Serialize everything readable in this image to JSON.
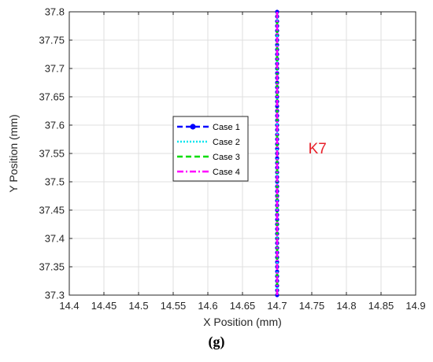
{
  "chart_data": {
    "type": "line",
    "xlabel": "X Position (mm)",
    "ylabel": "Y Position (mm)",
    "xlim": [
      14.4,
      14.9
    ],
    "ylim": [
      37.3,
      37.8
    ],
    "xticks": [
      "14.4",
      "14.45",
      "14.5",
      "14.55",
      "14.6",
      "14.65",
      "14.7",
      "14.75",
      "14.8",
      "14.85",
      "14.9"
    ],
    "yticks": [
      "37.3",
      "37.35",
      "37.4",
      "37.45",
      "37.5",
      "37.55",
      "37.6",
      "37.65",
      "37.7",
      "37.75",
      "37.8"
    ],
    "grid": true,
    "legend_position": "center-left",
    "series": [
      {
        "name": "Case 1",
        "color": "#0000ff",
        "style": "dashed-with-circle-markers",
        "x": [
          14.7,
          14.7
        ],
        "y": [
          37.3,
          37.8
        ]
      },
      {
        "name": "Case 2",
        "color": "#00e5ee",
        "style": "dotted",
        "x": [
          14.7,
          14.7
        ],
        "y": [
          37.3,
          37.8
        ]
      },
      {
        "name": "Case 3",
        "color": "#00dd00",
        "style": "dashed",
        "x": [
          14.7,
          14.7
        ],
        "y": [
          37.3,
          37.8
        ]
      },
      {
        "name": "Case 4",
        "color": "#ff00ff",
        "style": "dash-dot",
        "x": [
          14.7,
          14.7
        ],
        "y": [
          37.3,
          37.8
        ]
      }
    ],
    "annotations": [
      {
        "text": "K7",
        "color": "#e8202a",
        "x": 14.745,
        "y": 37.56
      }
    ]
  },
  "panel_label": "(g)"
}
